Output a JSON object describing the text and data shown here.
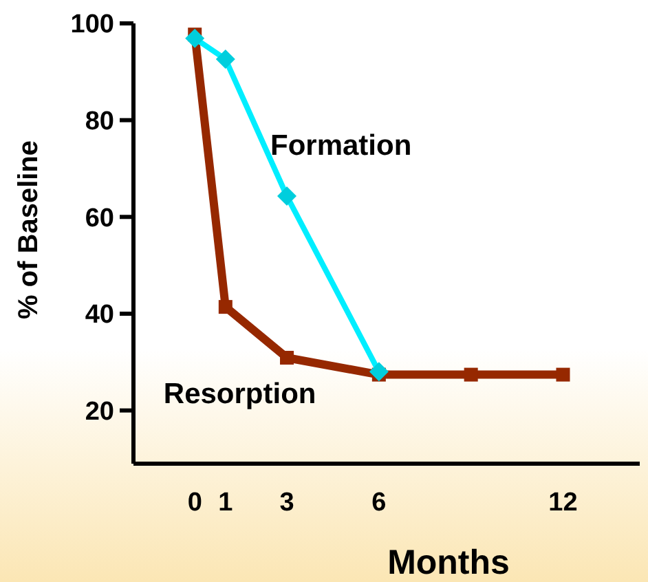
{
  "chart_data": {
    "type": "line",
    "xlabel": "Months",
    "ylabel": "% of Baseline",
    "xlim": [
      -2,
      14.5
    ],
    "ylim": [
      9,
      100
    ],
    "xticks": [
      0,
      1,
      3,
      6,
      12
    ],
    "yticks": [
      20,
      40,
      60,
      80,
      100
    ],
    "grid": false,
    "x": [
      0,
      1,
      3,
      6,
      9,
      12
    ],
    "series": [
      {
        "name": "Resorption",
        "color": "#962800",
        "marker": "square",
        "values": [
          97.7,
          41.4,
          30.9,
          27.4,
          27.4,
          27.4
        ]
      },
      {
        "name": "Formation",
        "color": "#00eeff",
        "marker": "diamond",
        "x": [
          0,
          1,
          3,
          6
        ],
        "values": [
          96.9,
          92.6,
          64.3,
          28
        ]
      }
    ]
  }
}
